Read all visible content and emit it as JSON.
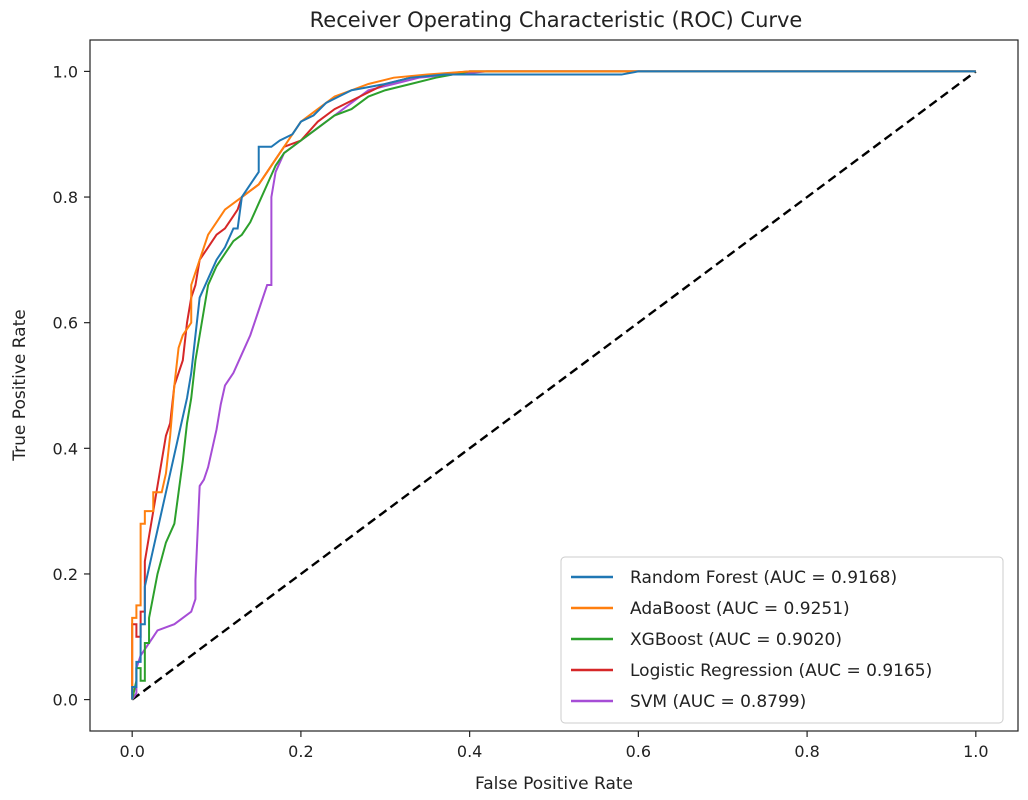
{
  "chart_data": {
    "type": "line",
    "title": "Receiver Operating Characteristic (ROC) Curve",
    "xlabel": "False Positive Rate",
    "ylabel": "True Positive Rate",
    "xlim": [
      -0.05,
      1.05
    ],
    "ylim": [
      -0.05,
      1.05
    ],
    "xticks": [
      0.0,
      0.2,
      0.4,
      0.6,
      0.8,
      1.0
    ],
    "xtick_labels": [
      "0.0",
      "0.2",
      "0.4",
      "0.6",
      "0.8",
      "1.0"
    ],
    "yticks": [
      0.0,
      0.2,
      0.4,
      0.6,
      0.8,
      1.0
    ],
    "ytick_labels": [
      "0.0",
      "0.2",
      "0.4",
      "0.6",
      "0.8",
      "1.0"
    ],
    "grid": false,
    "legend_position": "lower-right",
    "series": [
      {
        "name": "Random Forest (AUC = 0.9168)",
        "color": "#1f77b4",
        "x": [
          0.0,
          0.0,
          0.005,
          0.005,
          0.01,
          0.01,
          0.015,
          0.015,
          0.02,
          0.025,
          0.03,
          0.035,
          0.045,
          0.055,
          0.065,
          0.07,
          0.075,
          0.08,
          0.09,
          0.1,
          0.11,
          0.12,
          0.125,
          0.13,
          0.14,
          0.15,
          0.15,
          0.165,
          0.175,
          0.19,
          0.2,
          0.215,
          0.23,
          0.245,
          0.26,
          0.28,
          0.3,
          0.33,
          0.37,
          0.42,
          0.5,
          0.58,
          0.6,
          1.0
        ],
        "y": [
          0.0,
          0.02,
          0.02,
          0.06,
          0.06,
          0.12,
          0.12,
          0.18,
          0.21,
          0.24,
          0.27,
          0.3,
          0.36,
          0.42,
          0.48,
          0.52,
          0.58,
          0.64,
          0.67,
          0.7,
          0.72,
          0.75,
          0.75,
          0.8,
          0.82,
          0.84,
          0.88,
          0.88,
          0.89,
          0.9,
          0.92,
          0.93,
          0.95,
          0.96,
          0.97,
          0.975,
          0.98,
          0.99,
          0.995,
          0.995,
          0.995,
          0.995,
          1.0,
          1.0
        ]
      },
      {
        "name": "AdaBoost (AUC = 0.9251)",
        "color": "#ff7f0e",
        "x": [
          0.0,
          0.0,
          0.005,
          0.005,
          0.01,
          0.01,
          0.015,
          0.015,
          0.025,
          0.025,
          0.035,
          0.04,
          0.045,
          0.05,
          0.055,
          0.06,
          0.06,
          0.07,
          0.07,
          0.08,
          0.09,
          0.1,
          0.11,
          0.12,
          0.13,
          0.14,
          0.15,
          0.16,
          0.17,
          0.18,
          0.19,
          0.2,
          0.22,
          0.24,
          0.26,
          0.28,
          0.31,
          0.35,
          0.4,
          0.45,
          1.0
        ],
        "y": [
          0.0,
          0.13,
          0.13,
          0.15,
          0.15,
          0.28,
          0.28,
          0.3,
          0.3,
          0.33,
          0.33,
          0.36,
          0.42,
          0.5,
          0.56,
          0.58,
          0.58,
          0.6,
          0.66,
          0.7,
          0.74,
          0.76,
          0.78,
          0.79,
          0.8,
          0.81,
          0.82,
          0.84,
          0.86,
          0.88,
          0.9,
          0.92,
          0.94,
          0.96,
          0.97,
          0.98,
          0.99,
          0.995,
          1.0,
          1.0,
          1.0
        ]
      },
      {
        "name": "XGBoost (AUC = 0.9020)",
        "color": "#2ca02c",
        "x": [
          0.0,
          0.005,
          0.005,
          0.01,
          0.01,
          0.015,
          0.015,
          0.02,
          0.02,
          0.03,
          0.04,
          0.05,
          0.055,
          0.06,
          0.065,
          0.07,
          0.075,
          0.08,
          0.085,
          0.09,
          0.1,
          0.11,
          0.12,
          0.13,
          0.14,
          0.15,
          0.16,
          0.17,
          0.18,
          0.2,
          0.22,
          0.24,
          0.26,
          0.28,
          0.3,
          0.33,
          0.36,
          0.4,
          1.0
        ],
        "y": [
          0.0,
          0.03,
          0.05,
          0.05,
          0.03,
          0.03,
          0.09,
          0.09,
          0.13,
          0.2,
          0.25,
          0.28,
          0.33,
          0.38,
          0.44,
          0.48,
          0.54,
          0.58,
          0.62,
          0.66,
          0.69,
          0.71,
          0.73,
          0.74,
          0.76,
          0.79,
          0.82,
          0.85,
          0.87,
          0.89,
          0.91,
          0.93,
          0.94,
          0.96,
          0.97,
          0.98,
          0.99,
          1.0,
          1.0
        ]
      },
      {
        "name": "Logistic Regression (AUC = 0.9165)",
        "color": "#d62728",
        "x": [
          0.0,
          0.0,
          0.005,
          0.005,
          0.01,
          0.01,
          0.015,
          0.015,
          0.02,
          0.025,
          0.03,
          0.035,
          0.04,
          0.045,
          0.05,
          0.055,
          0.06,
          0.065,
          0.07,
          0.075,
          0.08,
          0.085,
          0.09,
          0.1,
          0.11,
          0.12,
          0.125,
          0.13,
          0.14,
          0.15,
          0.16,
          0.17,
          0.18,
          0.2,
          0.22,
          0.24,
          0.27,
          0.3,
          0.33,
          0.36,
          0.4,
          1.0
        ],
        "y": [
          0.0,
          0.12,
          0.12,
          0.1,
          0.1,
          0.14,
          0.14,
          0.22,
          0.26,
          0.3,
          0.34,
          0.38,
          0.42,
          0.44,
          0.5,
          0.52,
          0.54,
          0.6,
          0.64,
          0.66,
          0.7,
          0.71,
          0.72,
          0.74,
          0.75,
          0.77,
          0.78,
          0.8,
          0.81,
          0.82,
          0.84,
          0.86,
          0.88,
          0.89,
          0.92,
          0.94,
          0.96,
          0.98,
          0.99,
          0.995,
          1.0,
          1.0
        ]
      },
      {
        "name": "SVM (AUC = 0.8799)",
        "color": "#a64dd6",
        "x": [
          0.0,
          0.005,
          0.005,
          0.01,
          0.015,
          0.02,
          0.025,
          0.03,
          0.04,
          0.05,
          0.06,
          0.07,
          0.075,
          0.075,
          0.08,
          0.085,
          0.09,
          0.095,
          0.1,
          0.105,
          0.11,
          0.12,
          0.13,
          0.14,
          0.15,
          0.16,
          0.165,
          0.165,
          0.17,
          0.18,
          0.2,
          0.22,
          0.24,
          0.26,
          0.28,
          0.31,
          0.34,
          0.38,
          0.42,
          1.0
        ],
        "y": [
          0.0,
          0.01,
          0.05,
          0.07,
          0.08,
          0.09,
          0.1,
          0.11,
          0.115,
          0.12,
          0.13,
          0.14,
          0.16,
          0.19,
          0.34,
          0.35,
          0.37,
          0.4,
          0.43,
          0.47,
          0.5,
          0.52,
          0.55,
          0.58,
          0.62,
          0.66,
          0.66,
          0.8,
          0.84,
          0.87,
          0.89,
          0.91,
          0.93,
          0.95,
          0.97,
          0.98,
          0.99,
          0.995,
          1.0,
          1.0
        ]
      }
    ],
    "reference_line": {
      "x": [
        0.0,
        1.0
      ],
      "y": [
        0.0,
        1.0
      ],
      "color": "#000000",
      "style": "dashed"
    }
  }
}
